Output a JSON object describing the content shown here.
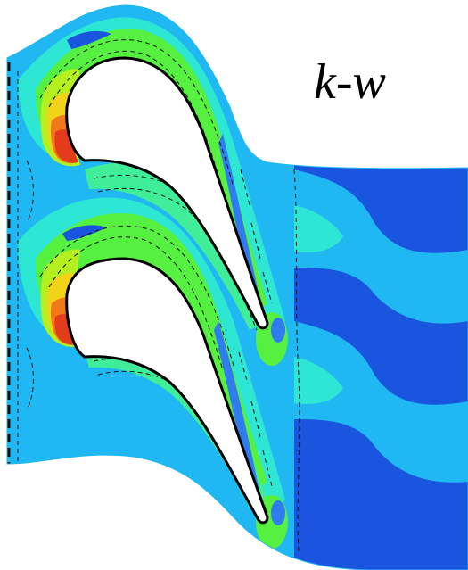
{
  "figure": {
    "model_label": "k-w",
    "colors": {
      "background": "#ffffff",
      "deep_blue": "#1a55e0",
      "blue": "#2f7bf0",
      "light_blue": "#20b8f2",
      "cyan": "#2ee6d4",
      "green_cyan": "#40ee9a",
      "green": "#55f040",
      "yellow_green": "#b4f020",
      "yellow": "#f3d21a",
      "orange": "#f07a1a",
      "red": "#e23c1c",
      "blade_fill": "#ffffff",
      "blade_outline": "#000000",
      "contour_line": "#111111"
    }
  }
}
